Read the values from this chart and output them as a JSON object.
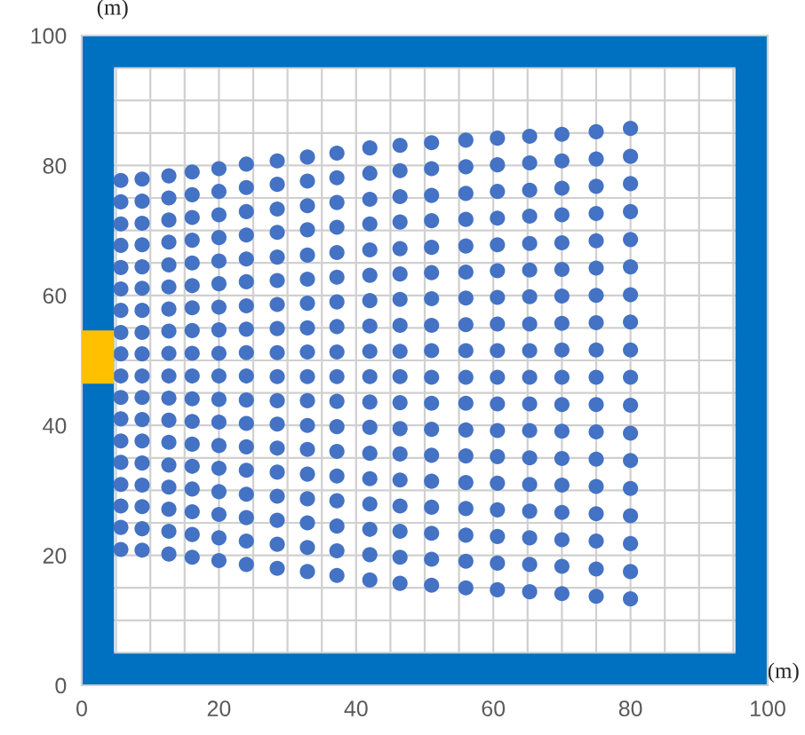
{
  "chart_data": {
    "type": "scatter",
    "xlabel": "(m)",
    "ylabel": "(m)",
    "marker": "circle",
    "grid": true,
    "xlim": [
      0,
      100
    ],
    "ylim": [
      0,
      100
    ],
    "xticks": [
      0,
      {
        "value": 5,
        "label": null
      },
      {
        "value": 10,
        "label": null
      },
      {
        "value": 15,
        "label": null
      },
      20,
      {
        "value": 25,
        "label": null
      },
      {
        "value": 30,
        "label": null
      },
      {
        "value": 35,
        "label": null
      },
      40,
      {
        "value": 45,
        "label": null
      },
      {
        "value": 50,
        "label": null
      },
      {
        "value": 55,
        "label": null
      },
      60,
      {
        "value": 65,
        "label": null
      },
      {
        "value": 70,
        "label": null
      },
      {
        "value": 75,
        "label": null
      },
      80,
      {
        "value": 85,
        "label": null
      },
      {
        "value": 90,
        "label": null
      },
      {
        "value": 95,
        "label": null
      },
      100
    ],
    "yticks": [
      0,
      {
        "value": 5,
        "label": null
      },
      {
        "value": 10,
        "label": null
      },
      {
        "value": 15,
        "label": null
      },
      20,
      {
        "value": 25,
        "label": null
      },
      {
        "value": 30,
        "label": null
      },
      {
        "value": 35,
        "label": null
      },
      40,
      {
        "value": 45,
        "label": null
      },
      {
        "value": 50,
        "label": null
      },
      {
        "value": 55,
        "label": null
      },
      60,
      {
        "value": 65,
        "label": null
      },
      {
        "value": 70,
        "label": null
      },
      {
        "value": 75,
        "label": null
      },
      80,
      {
        "value": 85,
        "label": null
      },
      {
        "value": 90,
        "label": null
      },
      {
        "value": 95,
        "label": null
      },
      100
    ],
    "bands": [
      {
        "axis": "x",
        "from": 0,
        "to": 4.7,
        "color": "#0070c0"
      },
      {
        "axis": "x",
        "from": 95.3,
        "to": 100,
        "color": "#0070c0"
      },
      {
        "axis": "y",
        "from": 0,
        "to": 4.9,
        "color": "#0070c0"
      },
      {
        "axis": "y",
        "from": 95.1,
        "to": 100,
        "color": "#0070c0"
      }
    ],
    "x": [
      5.7,
      8.8,
      12.7,
      16.1,
      20,
      24,
      28.5,
      32.9,
      37.2,
      42,
      46.4,
      51,
      56,
      60.6,
      65.3,
      70,
      75,
      80
    ],
    "series": [
      {
        "color": "#4472c4",
        "values": [
          77.7,
          77.9,
          78.4,
          79.0,
          79.5,
          80.2,
          80.7,
          81.3,
          81.9,
          82.7,
          83.1,
          83.5,
          83.9,
          84.2,
          84.5,
          84.8,
          85.2,
          85.7
        ]
      },
      {
        "color": "#4472c4",
        "values": [
          74.4,
          74.5,
          75.0,
          75.5,
          76.0,
          76.6,
          77.1,
          77.6,
          78.1,
          78.8,
          79.2,
          79.5,
          79.8,
          80.1,
          80.4,
          80.7,
          81.0,
          81.4
        ]
      },
      {
        "color": "#4472c4",
        "values": [
          71.0,
          71.1,
          71.6,
          72.0,
          72.4,
          72.9,
          73.3,
          73.8,
          74.3,
          74.8,
          75.2,
          75.4,
          75.7,
          76.0,
          76.2,
          76.5,
          76.8,
          77.2
        ]
      },
      {
        "color": "#4472c4",
        "values": [
          67.7,
          67.8,
          68.2,
          68.5,
          68.9,
          69.3,
          69.7,
          70.1,
          70.5,
          71.0,
          71.3,
          71.5,
          71.7,
          71.9,
          72.2,
          72.4,
          72.6,
          72.9
        ]
      },
      {
        "color": "#4472c4",
        "values": [
          64.3,
          64.4,
          64.7,
          65.0,
          65.3,
          65.6,
          65.9,
          66.2,
          66.6,
          67.0,
          67.2,
          67.4,
          67.6,
          67.8,
          68.0,
          68.1,
          68.4,
          68.6
        ]
      },
      {
        "color": "#4472c4",
        "values": [
          61.0,
          61.1,
          61.3,
          61.5,
          61.8,
          62.1,
          62.3,
          62.5,
          62.8,
          63.1,
          63.3,
          63.5,
          63.6,
          63.8,
          63.9,
          64.0,
          64.2,
          64.4
        ]
      },
      {
        "color": "#4472c4",
        "values": [
          57.7,
          57.7,
          57.9,
          58.1,
          58.2,
          58.4,
          58.6,
          58.8,
          59.0,
          59.2,
          59.4,
          59.5,
          59.6,
          59.7,
          59.8,
          59.9,
          60.0,
          60.1
        ]
      },
      {
        "color": "#4472c4",
        "values": [
          54.3,
          54.3,
          54.5,
          54.6,
          54.7,
          54.8,
          54.9,
          55.0,
          55.2,
          55.3,
          55.4,
          55.4,
          55.5,
          55.6,
          55.6,
          55.7,
          55.8,
          55.9
        ]
      },
      {
        "color": "#4472c4",
        "values": [
          51.0,
          51.0,
          51.1,
          51.1,
          51.1,
          51.2,
          51.2,
          51.3,
          51.3,
          51.4,
          51.4,
          51.5,
          51.5,
          51.5,
          51.5,
          51.6,
          51.6,
          51.6
        ]
      },
      {
        "color": "#4472c4",
        "values": [
          47.6,
          47.6,
          47.6,
          47.6,
          47.6,
          47.6,
          47.5,
          47.5,
          47.5,
          47.5,
          47.5,
          47.4,
          47.4,
          47.4,
          47.4,
          47.4,
          47.4,
          47.4
        ]
      },
      {
        "color": "#4472c4",
        "values": [
          44.3,
          44.3,
          44.2,
          44.1,
          44.0,
          43.9,
          43.8,
          43.8,
          43.7,
          43.6,
          43.5,
          43.4,
          43.4,
          43.3,
          43.3,
          43.2,
          43.2,
          43.1
        ]
      },
      {
        "color": "#4472c4",
        "values": [
          41.0,
          40.9,
          40.8,
          40.6,
          40.5,
          40.3,
          40.2,
          40.0,
          39.8,
          39.7,
          39.5,
          39.4,
          39.3,
          39.2,
          39.2,
          39.1,
          39.0,
          38.8
        ]
      },
      {
        "color": "#4472c4",
        "values": [
          37.6,
          37.6,
          37.4,
          37.1,
          36.9,
          36.7,
          36.5,
          36.3,
          36.0,
          35.7,
          35.6,
          35.4,
          35.3,
          35.2,
          35.0,
          34.9,
          34.8,
          34.6
        ]
      },
      {
        "color": "#4472c4",
        "values": [
          34.3,
          34.2,
          33.9,
          33.7,
          33.4,
          33.1,
          32.8,
          32.5,
          32.2,
          31.8,
          31.6,
          31.4,
          31.2,
          31.1,
          30.9,
          30.8,
          30.6,
          30.3
        ]
      },
      {
        "color": "#4472c4",
        "values": [
          30.9,
          30.8,
          30.5,
          30.2,
          29.8,
          29.4,
          29.1,
          28.7,
          28.4,
          27.9,
          27.6,
          27.4,
          27.2,
          27.0,
          26.8,
          26.6,
          26.4,
          26.1
        ]
      },
      {
        "color": "#4472c4",
        "values": [
          27.6,
          27.5,
          27.1,
          26.7,
          26.3,
          25.8,
          25.4,
          25.0,
          24.5,
          24.0,
          23.7,
          23.4,
          23.1,
          22.9,
          22.7,
          22.4,
          22.2,
          21.8
        ]
      },
      {
        "color": "#4472c4",
        "values": [
          24.3,
          24.1,
          23.7,
          23.2,
          22.7,
          22.2,
          21.7,
          21.2,
          20.7,
          20.1,
          19.7,
          19.4,
          19.1,
          18.8,
          18.6,
          18.3,
          17.9,
          17.5
        ]
      },
      {
        "color": "#4472c4",
        "values": [
          20.9,
          20.8,
          20.2,
          19.7,
          19.2,
          18.6,
          18.0,
          17.5,
          16.9,
          16.2,
          15.7,
          15.4,
          15.0,
          14.7,
          14.4,
          14.1,
          13.7,
          13.3
        ]
      }
    ]
  }
}
